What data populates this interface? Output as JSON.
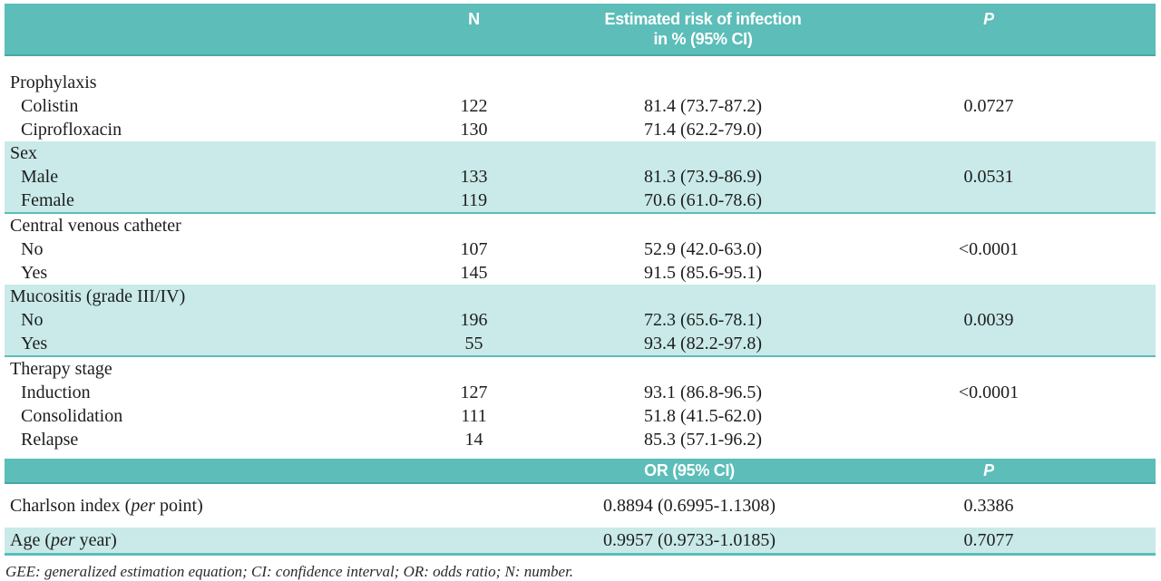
{
  "colors": {
    "teal": "#5cbdb9",
    "teal_edge": "#4aa7a3",
    "light_teal": "#c9eae9",
    "text": "#1d1d1d"
  },
  "table": {
    "header": {
      "col_n": "N",
      "col_risk_line1": "Estimated risk of infection",
      "col_risk_line2": "in % (95% CI)",
      "col_p": "P"
    },
    "sections": [
      {
        "label": "Prophylaxis",
        "rows": [
          {
            "label": "Colistin",
            "n": "122",
            "risk": "81.4 (73.7-87.2)",
            "p": "0.0727"
          },
          {
            "label": "Ciprofloxacin",
            "n": "130",
            "risk": "71.4 (62.2-79.0)",
            "p": ""
          }
        ]
      },
      {
        "label": "Sex",
        "rows": [
          {
            "label": "Male",
            "n": "133",
            "risk": "81.3 (73.9-86.9)",
            "p": "0.0531"
          },
          {
            "label": "Female",
            "n": "119",
            "risk": "70.6 (61.0-78.6)",
            "p": ""
          }
        ]
      },
      {
        "label": "Central venous catheter",
        "rows": [
          {
            "label": "No",
            "n": "107",
            "risk": "52.9 (42.0-63.0)",
            "p": "<0.0001"
          },
          {
            "label": "Yes",
            "n": "145",
            "risk": "91.5 (85.6-95.1)",
            "p": ""
          }
        ]
      },
      {
        "label": "Mucositis (grade III/IV)",
        "rows": [
          {
            "label": "No",
            "n": "196",
            "risk": "72.3 (65.6-78.1)",
            "p": "0.0039"
          },
          {
            "label": "Yes",
            "n": "55",
            "risk": "93.4 (82.2-97.8)",
            "p": ""
          }
        ]
      },
      {
        "label": "Therapy stage",
        "rows": [
          {
            "label": "Induction",
            "n": "127",
            "risk": "93.1 (86.8-96.5)",
            "p": "<0.0001"
          },
          {
            "label": "Consolidation",
            "n": "111",
            "risk": "51.8 (41.5-62.0)",
            "p": ""
          },
          {
            "label": "Relapse",
            "n": "14",
            "risk": "85.3 (57.1-96.2)",
            "p": ""
          }
        ]
      }
    ],
    "header2": {
      "col_or": "OR (95% CI)",
      "col_p": "P"
    },
    "or_rows": [
      {
        "label_pre": "Charlson index (",
        "label_italic": "per",
        "label_post": " point)",
        "or": "0.8894 (0.6995-1.1308)",
        "p": "0.3386"
      },
      {
        "label_pre": "Age (",
        "label_italic": "per",
        "label_post": " year)",
        "or": "0.9957 (0.9733-1.0185)",
        "p": "0.7077"
      }
    ],
    "footnote": "GEE: generalized estimation equation; CI: confidence interval; OR: odds ratio; N: number."
  }
}
